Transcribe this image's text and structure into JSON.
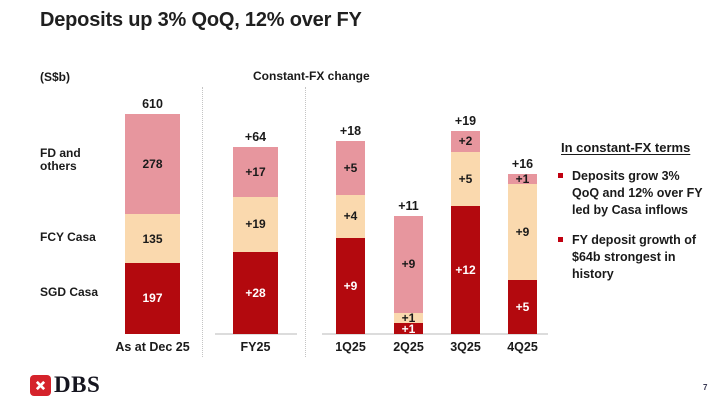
{
  "title": "Deposits up 3% QoQ, 12% over FY",
  "chart_labels": {
    "unit_label": "(S$b)",
    "fx_header": "Constant-FX change",
    "row_labels": {
      "fd": "FD and\nothers",
      "fcy": "FCY Casa",
      "sgd": "SGD Casa"
    }
  },
  "chart_data": {
    "type": "bar",
    "subtype": "stacked-columns",
    "unit": "S$b",
    "title": "Deposits up 3% QoQ, 12% over FY",
    "sections": [
      {
        "name": "level",
        "header": "(S$b)"
      },
      {
        "name": "constant-fx-change",
        "header": "Constant-FX change"
      }
    ],
    "legend_position": "left-row-labels",
    "grid": false,
    "series": [
      {
        "name": "FD and others",
        "color": "#e7969e",
        "label_color": "#1a1a1a"
      },
      {
        "name": "FCY Casa",
        "color": "#fad9ae",
        "label_color": "#1a1a1a"
      },
      {
        "name": "SGD Casa",
        "color": "#b3090e",
        "label_color": "#ffffff"
      }
    ],
    "groups": [
      {
        "category": "As at Dec 25",
        "section": "level",
        "total": 610,
        "total_label": "610",
        "segments": [
          {
            "series": "FD and others",
            "value": 278,
            "label": "278"
          },
          {
            "series": "FCY Casa",
            "value": 135,
            "label": "135"
          },
          {
            "series": "SGD Casa",
            "value": 197,
            "label": "197"
          }
        ]
      },
      {
        "category": "FY25",
        "section": "constant-fx-change",
        "total": 64,
        "total_label": "+64",
        "segments": [
          {
            "series": "FD and others",
            "value": 17,
            "label": "+17"
          },
          {
            "series": "FCY Casa",
            "value": 19,
            "label": "+19"
          },
          {
            "series": "SGD Casa",
            "value": 28,
            "label": "+28"
          }
        ]
      },
      {
        "category": "1Q25",
        "section": "constant-fx-change",
        "total": 18,
        "total_label": "+18",
        "segments": [
          {
            "series": "FD and others",
            "value": 5,
            "label": "+5"
          },
          {
            "series": "FCY Casa",
            "value": 4,
            "label": "+4"
          },
          {
            "series": "SGD Casa",
            "value": 9,
            "label": "+9"
          }
        ]
      },
      {
        "category": "2Q25",
        "section": "constant-fx-change",
        "total": 11,
        "total_label": "+11",
        "segments": [
          {
            "series": "FD and others",
            "value": 9,
            "label": "+9"
          },
          {
            "series": "FCY Casa",
            "value": 1,
            "label": "+1"
          },
          {
            "series": "SGD Casa",
            "value": 1,
            "label": "+1"
          }
        ]
      },
      {
        "category": "3Q25",
        "section": "constant-fx-change",
        "total": 19,
        "total_label": "+19",
        "segments": [
          {
            "series": "FD and others",
            "value": 2,
            "label": "+2"
          },
          {
            "series": "FCY Casa",
            "value": 5,
            "label": "+5"
          },
          {
            "series": "SGD Casa",
            "value": 12,
            "label": "+12"
          }
        ]
      },
      {
        "category": "4Q25",
        "section": "constant-fx-change",
        "total": 16,
        "total_label": "+16",
        "segments": [
          {
            "series": "FD and others",
            "value": 1,
            "label": "+1"
          },
          {
            "series": "FCY Casa",
            "value": 9,
            "label": "+9"
          },
          {
            "series": "SGD Casa",
            "value": 5,
            "label": "+5"
          }
        ]
      }
    ]
  },
  "notes": {
    "heading": "In constant-FX terms",
    "bullet_color": "#c00010",
    "bullets": [
      "Deposits grow 3%\nQoQ and 12% over FY\nled by Casa inflows",
      "FY deposit growth of\n$64b strongest in\nhistory"
    ]
  },
  "footer": {
    "logo_text": "DBS",
    "logo_color": "#d5232b",
    "page_number": "7"
  }
}
